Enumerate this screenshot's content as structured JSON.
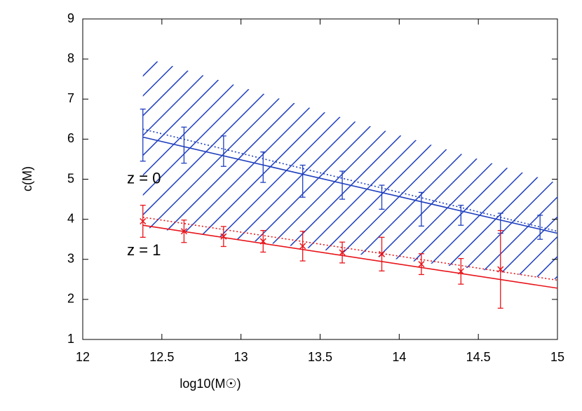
{
  "chart_data": {
    "type": "line",
    "xlabel": "log10(M☉)",
    "ylabel": "c(M)",
    "xlim": [
      12,
      15
    ],
    "ylim": [
      1,
      9
    ],
    "xticks": [
      12,
      12.5,
      13,
      13.5,
      14,
      14.5,
      15
    ],
    "yticks": [
      1,
      2,
      3,
      4,
      5,
      6,
      7,
      8,
      9
    ],
    "band": {
      "color": "#1f3fbf",
      "x": [
        12.38,
        15
      ],
      "lower": [
        3.8,
        2.5
      ],
      "upper": [
        8.05,
        4.9
      ]
    },
    "series": [
      {
        "color": "#1f3fbf",
        "style": "solid",
        "x": [
          12.38,
          15
        ],
        "values": [
          6.05,
          3.65
        ]
      },
      {
        "color": "#1f3fbf",
        "style": "dotted",
        "x": [
          12.38,
          15
        ],
        "values": [
          6.25,
          3.7
        ]
      },
      {
        "color": "#1f3fbf",
        "style": "points",
        "marker": "none",
        "x": [
          12.38,
          12.64,
          12.89,
          13.14,
          13.39,
          13.64,
          13.89,
          14.14,
          14.39,
          14.64,
          14.89
        ],
        "values": [
          6.1,
          5.85,
          5.7,
          5.3,
          4.95,
          4.85,
          4.55,
          4.25,
          4.1,
          3.9,
          3.8
        ],
        "errors": [
          0.65,
          0.45,
          0.38,
          0.38,
          0.4,
          0.35,
          0.3,
          0.42,
          0.25,
          0.25,
          0.3
        ]
      },
      {
        "color": "#e8141a",
        "style": "solid",
        "x": [
          12.38,
          15
        ],
        "values": [
          3.85,
          2.28
        ]
      },
      {
        "color": "#e8141a",
        "style": "dotted",
        "x": [
          12.38,
          15
        ],
        "values": [
          4.05,
          2.48
        ]
      },
      {
        "color": "#e8141a",
        "style": "points",
        "marker": "x",
        "x": [
          12.38,
          12.64,
          12.89,
          13.14,
          13.39,
          13.64,
          13.89,
          14.14,
          14.39,
          14.64
        ],
        "values": [
          3.95,
          3.7,
          3.57,
          3.45,
          3.33,
          3.17,
          3.13,
          2.88,
          2.7,
          2.75
        ],
        "errors": [
          0.4,
          0.28,
          0.25,
          0.27,
          0.37,
          0.26,
          0.42,
          0.26,
          0.32,
          0.97
        ]
      }
    ],
    "annotations": [
      {
        "text": "z = 0",
        "x": 12.28,
        "y": 5.0
      },
      {
        "text": "z = 1",
        "x": 12.28,
        "y": 3.2
      }
    ]
  }
}
